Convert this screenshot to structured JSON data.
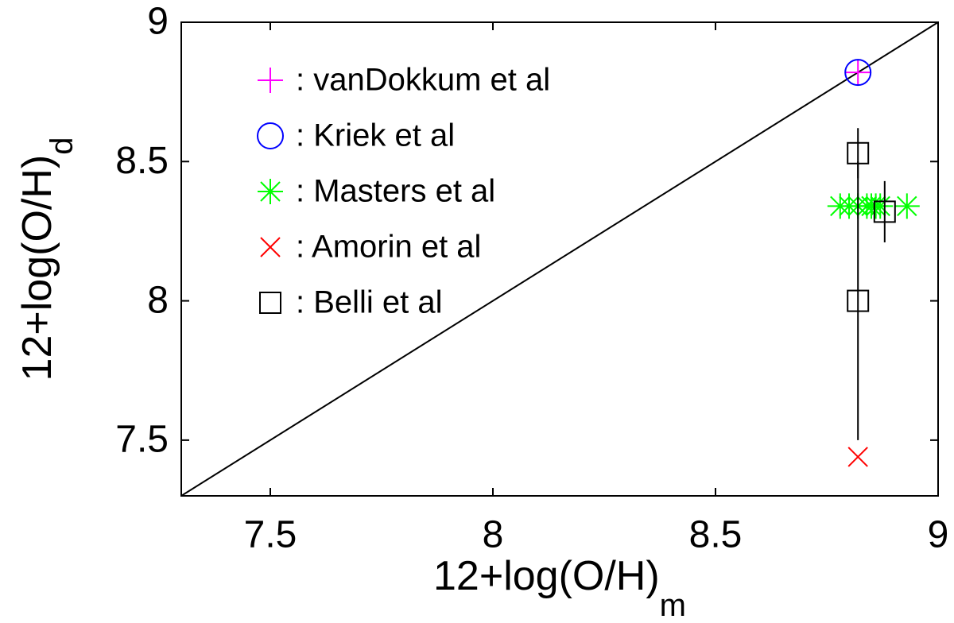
{
  "chart_data": {
    "type": "scatter",
    "xlabel": {
      "text": "12+log(O/H)",
      "subscript": "m"
    },
    "ylabel": {
      "text": "12+log(O/H)",
      "subscript": "d"
    },
    "xlim": [
      7.3,
      9
    ],
    "ylim": [
      7.3,
      9
    ],
    "xticks": [
      7.5,
      8,
      8.5,
      9
    ],
    "yticks": [
      7.5,
      8,
      8.5,
      9
    ],
    "identity_line": true,
    "legend": "upper left",
    "series": [
      {
        "name": ": vanDokkum et al",
        "color": "#ff00ff",
        "marker": "plus",
        "x": [
          8.82
        ],
        "values": [
          8.82
        ]
      },
      {
        "name": ": Kriek et al",
        "color": "#0000ff",
        "marker": "circle",
        "x": [
          8.82
        ],
        "values": [
          8.82
        ]
      },
      {
        "name": ": Masters et al",
        "color": "#00ff00",
        "marker": "star",
        "x": [
          8.78,
          8.8,
          8.82,
          8.84,
          8.85,
          8.86,
          8.87,
          8.93
        ],
        "values": [
          8.34,
          8.34,
          8.34,
          8.34,
          8.34,
          8.34,
          8.34,
          8.34
        ]
      },
      {
        "name": ": Amorin et al",
        "color": "#ff0000",
        "marker": "cross",
        "x": [
          8.82
        ],
        "values": [
          7.44
        ]
      },
      {
        "name": ": Belli et al",
        "color": "#000000",
        "marker": "square",
        "x": [
          8.82,
          8.82,
          8.88
        ],
        "values": [
          8.53,
          8,
          8.32
        ],
        "errors": [
          0.09,
          0.5,
          0.11
        ]
      }
    ]
  }
}
